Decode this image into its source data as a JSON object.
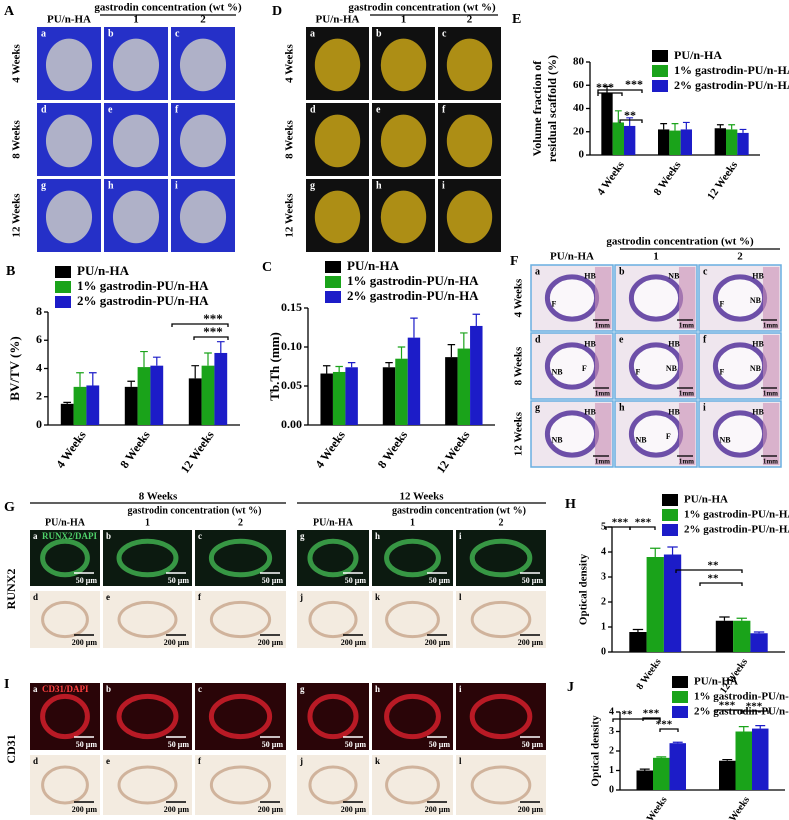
{
  "chart_data": [
    {
      "type": "bar",
      "panel": "B",
      "y_label": [
        "BV/TV (%)"
      ],
      "categories": [
        "4 Weeks",
        "8 Weeks",
        "12 Weeks"
      ],
      "series": [
        {
          "name": "PU/n-HA",
          "color": "#000000",
          "values": [
            1.5,
            2.7,
            3.3
          ],
          "errors": [
            0.1,
            0.4,
            0.9
          ]
        },
        {
          "name": "1% gastrodin-PU/n-HA",
          "color": "#1aa31a",
          "values": [
            2.7,
            4.1,
            4.2
          ],
          "errors": [
            1.0,
            1.1,
            0.9
          ]
        },
        {
          "name": "2% gastrodin-PU/n-HA",
          "color": "#1c1cc8",
          "values": [
            2.8,
            4.2,
            5.1
          ],
          "errors": [
            0.9,
            0.6,
            0.8
          ]
        }
      ],
      "ylim": [
        0,
        8
      ],
      "yticks": [
        0,
        2,
        4,
        6,
        8
      ],
      "annotations": [
        "***",
        "***"
      ]
    },
    {
      "type": "bar",
      "panel": "C",
      "y_label": [
        "Tb.Th (mm)"
      ],
      "categories": [
        "4 Weeks",
        "8 Weeks",
        "12 Weeks"
      ],
      "series": [
        {
          "name": "PU/n-HA",
          "color": "#000000",
          "values": [
            0.066,
            0.074,
            0.087
          ],
          "errors": [
            0.01,
            0.006,
            0.016
          ]
        },
        {
          "name": "1% gastrodin-PU/n-HA",
          "color": "#1aa31a",
          "values": [
            0.068,
            0.085,
            0.098
          ],
          "errors": [
            0.007,
            0.015,
            0.02
          ]
        },
        {
          "name": "2% gastrodin-PU/n-HA",
          "color": "#1c1cc8",
          "values": [
            0.074,
            0.112,
            0.127
          ],
          "errors": [
            0.006,
            0.025,
            0.015
          ]
        }
      ],
      "ylim": [
        0,
        0.15
      ],
      "yticks": [
        {
          "value": 0,
          "label": "0.00"
        },
        0.05,
        {
          "value": 0.1,
          "label": "0.10"
        },
        0.15
      ],
      "annotations": []
    },
    {
      "type": "bar",
      "panel": "E",
      "y_label": [
        "Volume fraction of",
        "residual scaffold (%)"
      ],
      "categories": [
        "4 Weeks",
        "8 Weeks",
        "12 Weeks"
      ],
      "series": [
        {
          "name": "PU/n-HA",
          "color": "#000000",
          "values": [
            53,
            22,
            23
          ],
          "errors": [
            6,
            5,
            3
          ]
        },
        {
          "name": "1% gastrodin-PU/n-HA",
          "color": "#1aa31a",
          "values": [
            28,
            21,
            22
          ],
          "errors": [
            10,
            6,
            4
          ]
        },
        {
          "name": "2% gastrodin-PU/n-HA",
          "color": "#1c1cc8",
          "values": [
            25,
            22,
            19
          ],
          "errors": [
            7,
            6,
            3
          ]
        }
      ],
      "ylim": [
        0,
        80
      ],
      "yticks": [
        0,
        20,
        40,
        60,
        80
      ],
      "annotations": [
        "***",
        "***",
        "**"
      ]
    },
    {
      "type": "bar",
      "panel": "H",
      "y_label": [
        "Optical density"
      ],
      "categories": [
        "8 Weeks",
        "12 Weeks"
      ],
      "series": [
        {
          "name": "PU/n-HA",
          "color": "#000000",
          "values": [
            0.8,
            1.25
          ],
          "errors": [
            0.1,
            0.15
          ]
        },
        {
          "name": "1% gastrodin-PU/n-HA",
          "color": "#1aa31a",
          "values": [
            3.8,
            1.25
          ],
          "errors": [
            0.35,
            0.1
          ]
        },
        {
          "name": "2% gastrodin-PU/n-HA",
          "color": "#1c1cc8",
          "values": [
            3.9,
            0.75
          ],
          "errors": [
            0.3,
            0.05
          ]
        }
      ],
      "ylim": [
        0,
        5
      ],
      "yticks": [
        0,
        1,
        2,
        3,
        4,
        5
      ],
      "annotations": [
        "***",
        "***",
        "**",
        "**"
      ]
    },
    {
      "type": "bar",
      "panel": "J",
      "y_label": [
        "Optical density"
      ],
      "categories": [
        "8 Weeks",
        "12 Weeks"
      ],
      "series": [
        {
          "name": "PU/n-HA",
          "color": "#000000",
          "values": [
            1.0,
            1.5
          ],
          "errors": [
            0.07,
            0.06
          ]
        },
        {
          "name": "1% gastrodin-PU/n-HA",
          "color": "#1aa31a",
          "values": [
            1.65,
            3.0
          ],
          "errors": [
            0.05,
            0.25
          ]
        },
        {
          "name": "2% gastrodin-PU/n-HA",
          "color": "#1c1cc8",
          "values": [
            2.4,
            3.15
          ],
          "errors": [
            0.05,
            0.15
          ]
        }
      ],
      "ylim": [
        0,
        4
      ],
      "yticks": [
        0,
        1,
        2,
        3,
        4
      ],
      "annotations": [
        "**",
        "***",
        "***",
        "***",
        "***"
      ]
    }
  ],
  "image_panels": [
    {
      "label": "A",
      "header": "gastrodin concentration (wt %)",
      "columns": [
        "PU/n-HA",
        "1",
        "2"
      ],
      "rows": [
        "4 Weeks",
        "8 Weeks",
        "12 Weeks"
      ],
      "cells": [
        {
          "letter": "a"
        },
        {
          "letter": "b"
        },
        {
          "letter": "c"
        },
        {
          "letter": "d"
        },
        {
          "letter": "e"
        },
        {
          "letter": "f"
        },
        {
          "letter": "g"
        },
        {
          "letter": "h"
        },
        {
          "letter": "i"
        }
      ]
    },
    {
      "label": "D",
      "header": "gastrodin concentration (wt %)",
      "columns": [
        "PU/n-HA",
        "1",
        "2"
      ],
      "rows": [
        "4 Weeks",
        "8 Weeks",
        "12 Weeks"
      ],
      "cells": [
        {
          "letter": "a"
        },
        {
          "letter": "b"
        },
        {
          "letter": "c"
        },
        {
          "letter": "d"
        },
        {
          "letter": "e"
        },
        {
          "letter": "f"
        },
        {
          "letter": "g"
        },
        {
          "letter": "h"
        },
        {
          "letter": "i"
        }
      ]
    },
    {
      "label": "F",
      "header": "gastrodin concentration (wt %)",
      "columns": [
        "PU/n-HA",
        "1",
        "2"
      ],
      "rows": [
        "4 Weeks",
        "8 Weeks",
        "12 Weeks"
      ],
      "cells": [
        {
          "letter": "a",
          "marks": [
            "HB",
            "F"
          ],
          "scale": "1mm"
        },
        {
          "letter": "b",
          "marks": [
            "NB"
          ],
          "scale": "1mm"
        },
        {
          "letter": "c",
          "marks": [
            "HB",
            "F",
            "NB"
          ],
          "scale": "1mm"
        },
        {
          "letter": "d",
          "marks": [
            "HB",
            "NB",
            "F"
          ],
          "scale": "1mm"
        },
        {
          "letter": "e",
          "marks": [
            "HB",
            "F",
            "NB"
          ],
          "scale": "1mm"
        },
        {
          "letter": "f",
          "marks": [
            "HB",
            "F",
            "NB"
          ],
          "scale": "1mm"
        },
        {
          "letter": "g",
          "marks": [
            "HB",
            "NB"
          ],
          "scale": "1mm"
        },
        {
          "letter": "h",
          "marks": [
            "HB",
            "NB",
            "F"
          ],
          "scale": "1mm"
        },
        {
          "letter": "i",
          "marks": [
            "HB",
            "NB"
          ],
          "scale": "1mm"
        }
      ]
    },
    {
      "label": "G",
      "row_label": "RUNX2",
      "stain": "RUNX2/DAPI",
      "groups": [
        {
          "title": "8 Weeks",
          "header": "gastrodin concentration (wt %)",
          "columns": [
            "PU/n-HA",
            "1",
            "2"
          ]
        },
        {
          "title": "12 Weeks",
          "header": "gastrodin concentration (wt %)",
          "columns": [
            "PU/n-HA",
            "1",
            "2"
          ]
        }
      ],
      "top": [
        {
          "letter": "a",
          "scale": "50 μm"
        },
        {
          "letter": "b",
          "scale": "50 μm"
        },
        {
          "letter": "c",
          "scale": "50 μm"
        },
        {
          "letter": "g",
          "scale": "50 μm"
        },
        {
          "letter": "h",
          "scale": "50 μm"
        },
        {
          "letter": "i",
          "scale": "50 μm"
        }
      ],
      "bottom": [
        {
          "letter": "d",
          "scale": "200 μm"
        },
        {
          "letter": "e",
          "scale": "200 μm"
        },
        {
          "letter": "f",
          "scale": "200 μm"
        },
        {
          "letter": "j",
          "scale": "200 μm"
        },
        {
          "letter": "k",
          "scale": "200 μm"
        },
        {
          "letter": "l",
          "scale": "200 μm"
        }
      ]
    },
    {
      "label": "I",
      "row_label": "CD31",
      "stain": "CD31/DAPI",
      "groups": [],
      "top": [
        {
          "letter": "a",
          "scale": "50 μm"
        },
        {
          "letter": "b",
          "scale": "50 μm"
        },
        {
          "letter": "c",
          "scale": "50 μm"
        },
        {
          "letter": "g",
          "scale": "50 μm"
        },
        {
          "letter": "h",
          "scale": "50 μm"
        },
        {
          "letter": "i",
          "scale": "50 μm"
        }
      ],
      "bottom": [
        {
          "letter": "d",
          "scale": "200 μm"
        },
        {
          "letter": "e",
          "scale": "200 μm"
        },
        {
          "letter": "f",
          "scale": "200 μm"
        },
        {
          "letter": "j",
          "scale": "200 μm"
        },
        {
          "letter": "k",
          "scale": "200 μm"
        },
        {
          "letter": "l",
          "scale": "200 μm"
        }
      ]
    }
  ]
}
